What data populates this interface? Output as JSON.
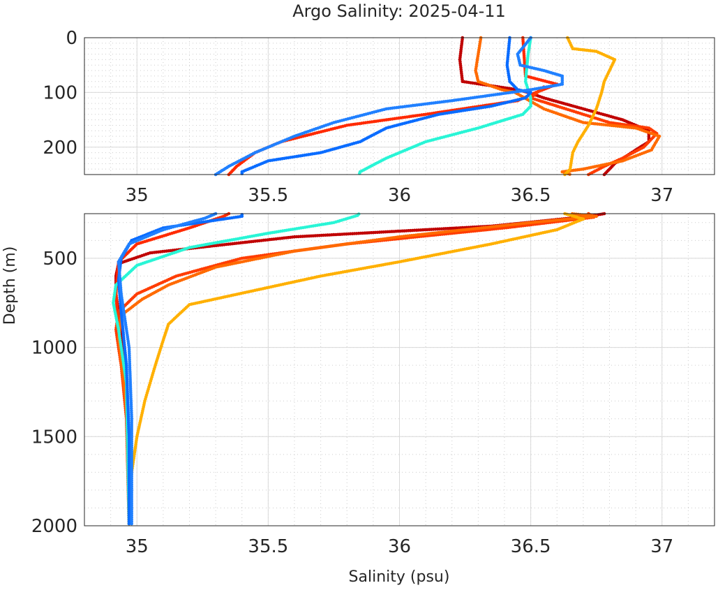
{
  "chart_data": {
    "type": "scatter",
    "title": "Argo Salinity: 2025-04-11",
    "xlabel": "Salinity (psu)",
    "ylabel": "Depth (m)",
    "grid": true,
    "y_reversed": true,
    "panels": [
      {
        "ylim": [
          0,
          250
        ],
        "xlim": [
          34.8,
          37.2
        ],
        "xticks": [
          35,
          35.5,
          36,
          36.5,
          37
        ],
        "xtick_labels": [
          "35",
          "35.5",
          "36",
          "36.5",
          "37"
        ],
        "yticks": [
          0,
          100,
          200
        ],
        "ytick_labels": [
          "0",
          "100",
          "200"
        ]
      },
      {
        "ylim": [
          250,
          2000
        ],
        "xlim": [
          34.8,
          37.2
        ],
        "xticks": [
          35,
          35.5,
          36,
          36.5,
          37
        ],
        "xtick_labels": [
          "35",
          "35.5",
          "36",
          "36.5",
          "37"
        ],
        "yticks": [
          500,
          1000,
          1500,
          2000
        ],
        "ytick_labels": [
          "500",
          "1000",
          "1500",
          "2000"
        ]
      }
    ],
    "series": [
      {
        "color": "#c00000",
        "points": [
          [
            36.24,
            0
          ],
          [
            36.23,
            40
          ],
          [
            36.24,
            80
          ],
          [
            36.45,
            95
          ],
          [
            36.49,
            100
          ],
          [
            36.55,
            110
          ],
          [
            36.85,
            150
          ],
          [
            36.95,
            170
          ],
          [
            36.95,
            190
          ],
          [
            36.9,
            205
          ],
          [
            36.82,
            230
          ],
          [
            36.78,
            250
          ],
          [
            36.72,
            265
          ],
          [
            36.35,
            320
          ],
          [
            35.6,
            380
          ],
          [
            35.05,
            470
          ],
          [
            34.93,
            530
          ],
          [
            34.92,
            600
          ],
          [
            34.92,
            700
          ],
          [
            34.94,
            900
          ],
          [
            34.96,
            1200
          ],
          [
            34.97,
            1500
          ],
          [
            34.97,
            2000
          ]
        ]
      },
      {
        "color": "#ff2a00",
        "points": [
          [
            36.47,
            0
          ],
          [
            36.48,
            70
          ],
          [
            36.6,
            85
          ],
          [
            36.52,
            100
          ],
          [
            36.45,
            115
          ],
          [
            36.1,
            140
          ],
          [
            35.8,
            160
          ],
          [
            35.55,
            190
          ],
          [
            35.45,
            210
          ],
          [
            35.38,
            235
          ],
          [
            35.35,
            250
          ],
          [
            35.33,
            265
          ],
          [
            35.2,
            330
          ],
          [
            35.0,
            420
          ],
          [
            34.93,
            520
          ],
          [
            34.92,
            700
          ],
          [
            34.93,
            900
          ],
          [
            34.96,
            1300
          ],
          [
            34.97,
            2000
          ]
        ]
      },
      {
        "color": "#ff3c00",
        "points": [
          [
            36.55,
            90
          ],
          [
            36.5,
            110
          ],
          [
            36.8,
            155
          ],
          [
            36.95,
            165
          ],
          [
            36.98,
            175
          ],
          [
            36.93,
            200
          ],
          [
            36.85,
            220
          ],
          [
            36.78,
            235
          ],
          [
            36.72,
            250
          ],
          [
            36.74,
            270
          ],
          [
            36.4,
            330
          ],
          [
            35.8,
            420
          ],
          [
            35.4,
            500
          ],
          [
            35.15,
            600
          ],
          [
            35.0,
            700
          ],
          [
            34.93,
            800
          ],
          [
            34.92,
            900
          ],
          [
            34.94,
            1100
          ],
          [
            34.96,
            1400
          ],
          [
            34.97,
            2000
          ]
        ]
      },
      {
        "color": "#ff6a00",
        "points": [
          [
            36.31,
            0
          ],
          [
            36.29,
            60
          ],
          [
            36.3,
            80
          ],
          [
            36.39,
            95
          ],
          [
            36.44,
            100
          ],
          [
            36.55,
            130
          ],
          [
            36.7,
            155
          ],
          [
            36.9,
            165
          ],
          [
            36.99,
            180
          ],
          [
            36.96,
            205
          ],
          [
            36.85,
            225
          ],
          [
            36.7,
            240
          ],
          [
            36.62,
            245
          ],
          [
            36.75,
            265
          ],
          [
            36.5,
            300
          ],
          [
            36.0,
            380
          ],
          [
            35.6,
            460
          ],
          [
            35.3,
            550
          ],
          [
            35.12,
            650
          ],
          [
            35.02,
            730
          ],
          [
            34.94,
            820
          ],
          [
            34.93,
            950
          ],
          [
            34.95,
            1200
          ],
          [
            34.97,
            1500
          ],
          [
            34.97,
            2000
          ]
        ]
      },
      {
        "color": "#ffb000",
        "points": [
          [
            36.64,
            0
          ],
          [
            36.66,
            20
          ],
          [
            36.75,
            25
          ],
          [
            36.82,
            40
          ],
          [
            36.8,
            60
          ],
          [
            36.78,
            80
          ],
          [
            36.77,
            100
          ],
          [
            36.75,
            130
          ],
          [
            36.72,
            160
          ],
          [
            36.68,
            190
          ],
          [
            36.66,
            210
          ],
          [
            36.65,
            240
          ],
          [
            36.63,
            250
          ],
          [
            36.7,
            280
          ],
          [
            36.6,
            340
          ],
          [
            36.35,
            420
          ],
          [
            36.0,
            520
          ],
          [
            35.7,
            600
          ],
          [
            35.45,
            680
          ],
          [
            35.2,
            760
          ],
          [
            35.12,
            870
          ],
          [
            35.1,
            960
          ],
          [
            35.07,
            1100
          ],
          [
            35.03,
            1300
          ],
          [
            35.0,
            1500
          ],
          [
            34.98,
            1700
          ],
          [
            34.97,
            2000
          ]
        ]
      },
      {
        "color": "#29f5d6",
        "points": [
          [
            36.5,
            0
          ],
          [
            36.49,
            30
          ],
          [
            36.48,
            80
          ],
          [
            36.5,
            110
          ],
          [
            36.5,
            125
          ],
          [
            36.47,
            140
          ],
          [
            36.3,
            165
          ],
          [
            36.1,
            190
          ],
          [
            35.95,
            220
          ],
          [
            35.85,
            245
          ],
          [
            35.84,
            260
          ],
          [
            35.75,
            300
          ],
          [
            35.5,
            360
          ],
          [
            35.2,
            440
          ],
          [
            35.0,
            540
          ],
          [
            34.92,
            650
          ],
          [
            34.91,
            750
          ],
          [
            34.93,
            900
          ],
          [
            34.96,
            1200
          ],
          [
            34.97,
            2000
          ]
        ]
      },
      {
        "color": "#0a6cff",
        "points": [
          [
            36.42,
            0
          ],
          [
            36.41,
            50
          ],
          [
            36.42,
            80
          ],
          [
            36.45,
            95
          ],
          [
            36.5,
            100
          ],
          [
            36.48,
            110
          ],
          [
            36.35,
            125
          ],
          [
            36.15,
            140
          ],
          [
            35.95,
            165
          ],
          [
            35.85,
            190
          ],
          [
            35.7,
            210
          ],
          [
            35.5,
            225
          ],
          [
            35.4,
            245
          ],
          [
            35.4,
            265
          ],
          [
            35.1,
            330
          ],
          [
            34.98,
            400
          ],
          [
            34.94,
            500
          ],
          [
            34.93,
            620
          ],
          [
            34.94,
            800
          ],
          [
            34.96,
            1100
          ],
          [
            34.97,
            1500
          ],
          [
            34.97,
            2000
          ]
        ]
      },
      {
        "color": "#2080ff",
        "points": [
          [
            36.5,
            0
          ],
          [
            36.45,
            30
          ],
          [
            36.46,
            50
          ],
          [
            36.55,
            60
          ],
          [
            36.62,
            70
          ],
          [
            36.62,
            85
          ],
          [
            36.5,
            95
          ],
          [
            36.2,
            115
          ],
          [
            35.95,
            130
          ],
          [
            35.75,
            155
          ],
          [
            35.6,
            180
          ],
          [
            35.45,
            210
          ],
          [
            35.35,
            235
          ],
          [
            35.3,
            250
          ],
          [
            35.26,
            275
          ],
          [
            35.1,
            340
          ],
          [
            34.97,
            420
          ],
          [
            34.93,
            520
          ],
          [
            34.94,
            700
          ],
          [
            34.97,
            1000
          ],
          [
            34.98,
            1400
          ],
          [
            34.98,
            2000
          ]
        ]
      }
    ]
  }
}
